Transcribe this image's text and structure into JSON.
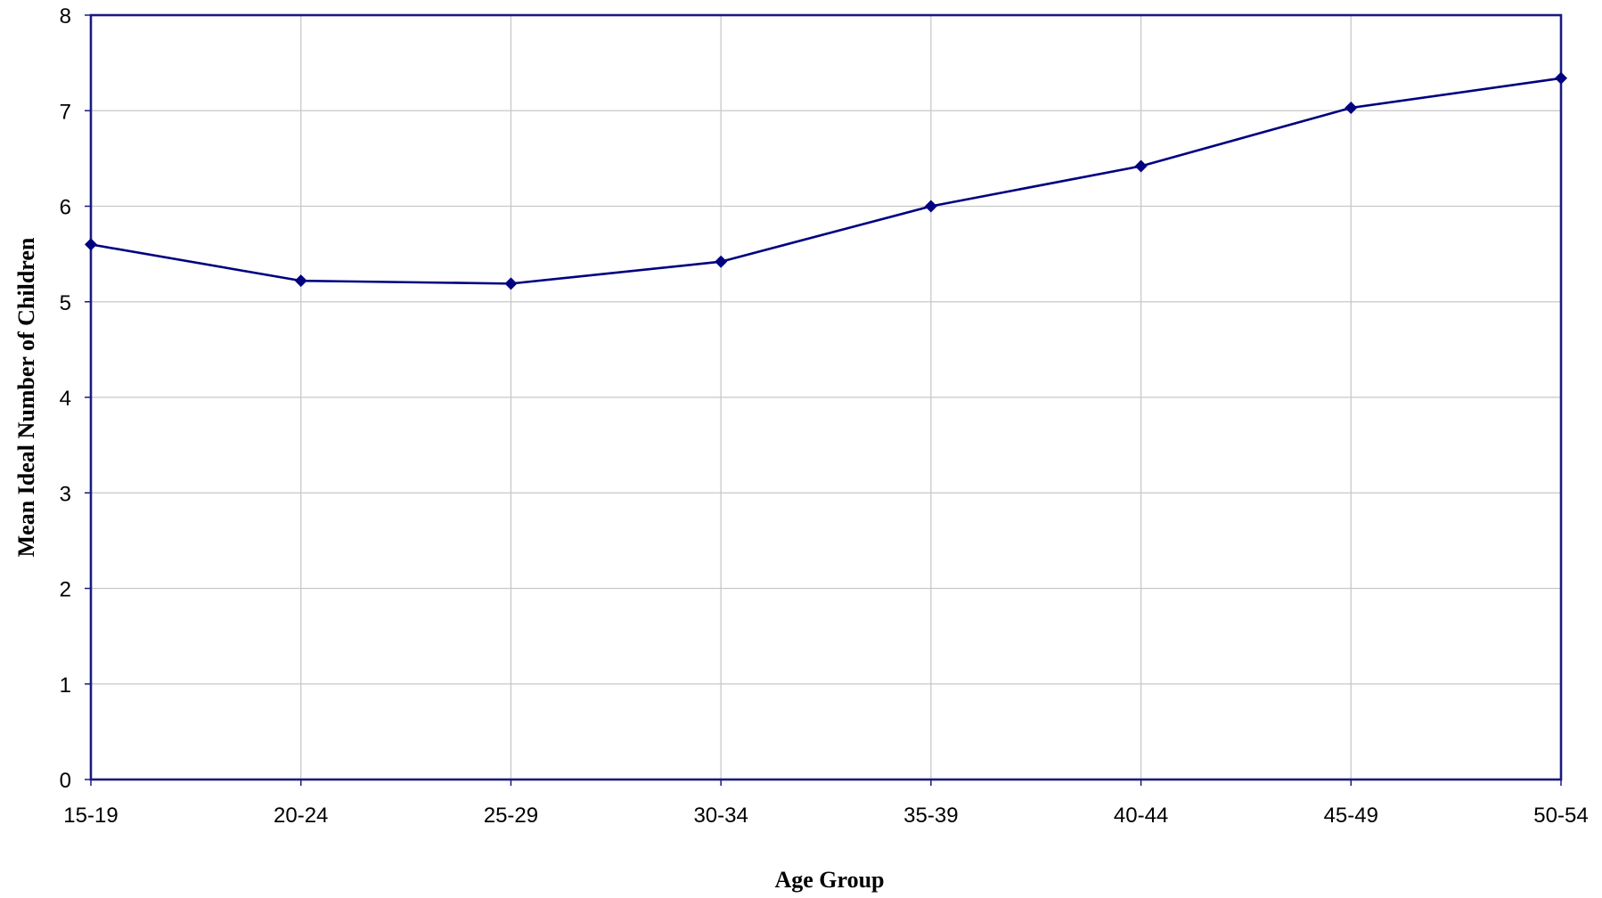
{
  "chart_data": {
    "type": "line",
    "title": "",
    "xlabel": "Age Group",
    "ylabel": "Mean Ideal Number of Children",
    "categories": [
      "15-19",
      "20-24",
      "25-29",
      "30-34",
      "35-39",
      "40-44",
      "45-49",
      "50-54"
    ],
    "series": [
      {
        "values": [
          5.6,
          5.22,
          5.19,
          5.42,
          6.0,
          6.42,
          7.03,
          7.34
        ],
        "color": "#000080",
        "marker": "diamond"
      }
    ],
    "ylim": [
      0,
      8
    ],
    "yticks": [
      "0",
      "1",
      "2",
      "3",
      "4",
      "5",
      "6",
      "7",
      "8"
    ],
    "grid": true,
    "legend": "none"
  }
}
